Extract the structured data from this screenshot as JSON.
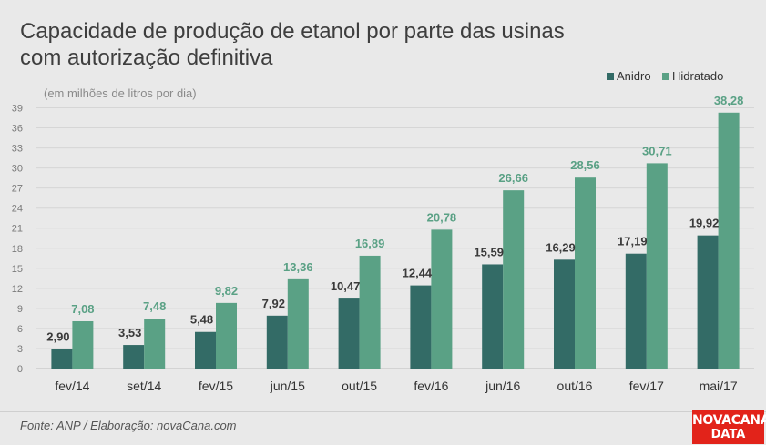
{
  "title": {
    "line1": "Capacidade de produção de etanol por parte das usinas",
    "line2": "com autorização definitiva"
  },
  "unit_note": "(em milhões de litros por dia)",
  "source": "Fonte: ANP / Elaboração: novaCana.com",
  "logo": {
    "line1": "NOVACANA",
    "line2": "DATA"
  },
  "colors": {
    "anidro": "#336b66",
    "hidratado": "#5aa185",
    "background": "#e9e9e9",
    "brand": "#e2231a"
  },
  "chart_data": {
    "type": "bar",
    "categories": [
      "fev/14",
      "set/14",
      "fev/15",
      "jun/15",
      "out/15",
      "fev/16",
      "jun/16",
      "out/16",
      "fev/17",
      "mai/17"
    ],
    "series": [
      {
        "name": "Anidro",
        "values": [
          2.9,
          3.53,
          5.48,
          7.92,
          10.47,
          12.44,
          15.59,
          16.29,
          17.19,
          19.92
        ],
        "labels": [
          "2,90",
          "3,53",
          "5,48",
          "7,92",
          "10,47",
          "12,44",
          "15,59",
          "16,29",
          "17,19",
          "19,92"
        ]
      },
      {
        "name": "Hidratado",
        "values": [
          7.08,
          7.48,
          9.82,
          13.36,
          16.89,
          20.78,
          26.66,
          28.56,
          30.71,
          38.28
        ],
        "labels": [
          "7,08",
          "7,48",
          "9,82",
          "13,36",
          "16,89",
          "20,78",
          "26,66",
          "28,56",
          "30,71",
          "38,28"
        ]
      }
    ],
    "yticks": [
      0,
      3,
      6,
      9,
      12,
      15,
      18,
      21,
      24,
      27,
      30,
      33,
      36,
      39
    ],
    "ylim": [
      0,
      39
    ],
    "grid": true,
    "legend": "top-right"
  }
}
